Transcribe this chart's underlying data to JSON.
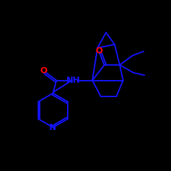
{
  "background_color": "#000000",
  "bond_color": "#1414FF",
  "atom_colors": {
    "O": "#FF0000",
    "N": "#1414FF",
    "NH": "#1414FF"
  },
  "figsize": [
    2.5,
    2.5
  ],
  "dpi": 100,
  "lw": 1.4,
  "fontsize": 9
}
